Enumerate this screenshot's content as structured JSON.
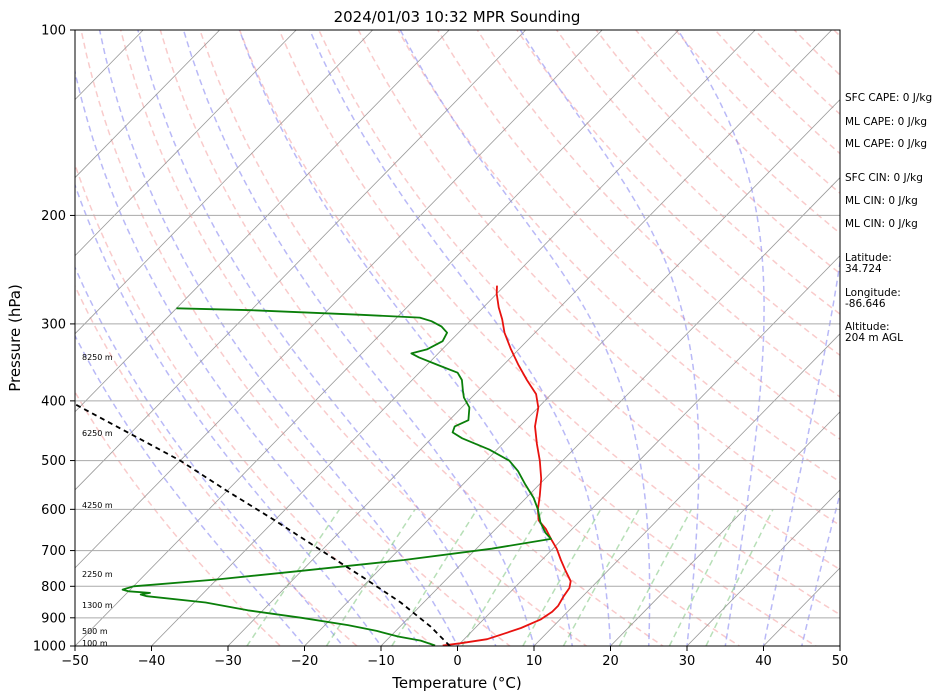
{
  "chart_data": {
    "type": "line",
    "title": "2024/01/03 10:32 MPR Sounding",
    "xlabel": "Temperature (°C)",
    "ylabel": "Pressure (hPa)",
    "xlim": [
      -50,
      50
    ],
    "ylim": [
      1000,
      100
    ],
    "y_scale": "log",
    "skew": "skew-T",
    "grid": true,
    "x_ticks": [
      -50,
      -40,
      -30,
      -20,
      -10,
      0,
      10,
      20,
      30,
      40,
      50
    ],
    "y_ticks": [
      100,
      200,
      300,
      400,
      500,
      600,
      700,
      800,
      900,
      1000
    ],
    "series": [
      {
        "color": "#e8120f",
        "points": [
          [
            -2,
            998
          ],
          [
            0,
            990
          ],
          [
            3,
            975
          ],
          [
            4.5,
            955
          ],
          [
            6,
            935
          ],
          [
            7.5,
            905
          ],
          [
            8,
            880
          ],
          [
            8,
            860
          ],
          [
            7.5,
            830
          ],
          [
            7.2,
            805
          ],
          [
            6.5,
            785
          ],
          [
            4.5,
            755
          ],
          [
            2.5,
            725
          ],
          [
            0.5,
            695
          ],
          [
            -1.5,
            670
          ],
          [
            -3.5,
            645
          ],
          [
            -5.5,
            625
          ],
          [
            -7,
            600
          ],
          [
            -8.5,
            570
          ],
          [
            -10.5,
            535
          ],
          [
            -13,
            500
          ],
          [
            -15.5,
            470
          ],
          [
            -18,
            440
          ],
          [
            -20,
            410
          ],
          [
            -22,
            390
          ],
          [
            -25,
            370
          ],
          [
            -28,
            350
          ],
          [
            -31,
            330
          ],
          [
            -34,
            310
          ],
          [
            -36,
            295
          ],
          [
            -38,
            282
          ],
          [
            -40,
            268
          ],
          [
            -41,
            260
          ]
        ]
      },
      {
        "color": "#0a7f0a",
        "points": [
          [
            -3,
            998
          ],
          [
            -5.5,
            980
          ],
          [
            -9,
            965
          ],
          [
            -12.5,
            945
          ],
          [
            -17,
            925
          ],
          [
            -24,
            900
          ],
          [
            -32,
            875
          ],
          [
            -38.5,
            850
          ],
          [
            -47,
            830
          ],
          [
            -48,
            825
          ],
          [
            -47,
            820
          ],
          [
            -50,
            815
          ],
          [
            -51,
            810
          ],
          [
            -50,
            800
          ],
          [
            -40,
            780
          ],
          [
            -30,
            755
          ],
          [
            -18,
            725
          ],
          [
            -8,
            695
          ],
          [
            -1.5,
            670
          ],
          [
            -3,
            655
          ],
          [
            -5,
            630
          ],
          [
            -7,
            600
          ],
          [
            -9,
            575
          ],
          [
            -12,
            545
          ],
          [
            -14.5,
            520
          ],
          [
            -17,
            500
          ],
          [
            -21,
            480
          ],
          [
            -26,
            460
          ],
          [
            -28,
            450
          ],
          [
            -28.5,
            440
          ],
          [
            -27.5,
            430
          ],
          [
            -29,
            410
          ],
          [
            -31,
            395
          ],
          [
            -32,
            385
          ],
          [
            -33.5,
            370
          ],
          [
            -35,
            360
          ],
          [
            -38.5,
            350
          ],
          [
            -42,
            340
          ],
          [
            -43.5,
            335
          ],
          [
            -42,
            330
          ],
          [
            -41,
            320
          ],
          [
            -41.5,
            310
          ],
          [
            -43,
            303
          ],
          [
            -45,
            297
          ],
          [
            -47,
            293
          ],
          [
            -55,
            290
          ],
          [
            -70,
            285
          ],
          [
            -80,
            283
          ]
        ]
      },
      {
        "color": "#000000",
        "style": "dashed",
        "points": [
          [
            -1,
            1000
          ],
          [
            -6,
            930
          ],
          [
            -13,
            850
          ],
          [
            -21,
            775
          ],
          [
            -30,
            700
          ],
          [
            -40,
            625
          ],
          [
            -50,
            560
          ],
          [
            -60,
            500
          ],
          [
            -75,
            430
          ],
          [
            -90,
            370
          ],
          [
            -104,
            320
          ],
          [
            -115,
            285
          ]
        ]
      }
    ],
    "height_labels": [
      "100 m",
      "500 m",
      "1300 m",
      "2250 m",
      "4250 m",
      "6250 m",
      "8250 m"
    ],
    "info": {
      "sfc_cape": "SFC CAPE: 0 J/kg",
      "ml_cape_1": "ML CAPE: 0 J/kg",
      "ml_cape_2": "ML CAPE: 0 J/kg",
      "sfc_cin": "SFC CIN: 0 J/kg",
      "ml_cin_1": "ML CIN: 0 J/kg",
      "ml_cin_2": "ML CIN: 0 J/kg",
      "latitude": "Latitude:\n34.724",
      "longitude": "Longitude:\n-86.646",
      "altitude": "Altitude:\n204 m AGL"
    }
  }
}
